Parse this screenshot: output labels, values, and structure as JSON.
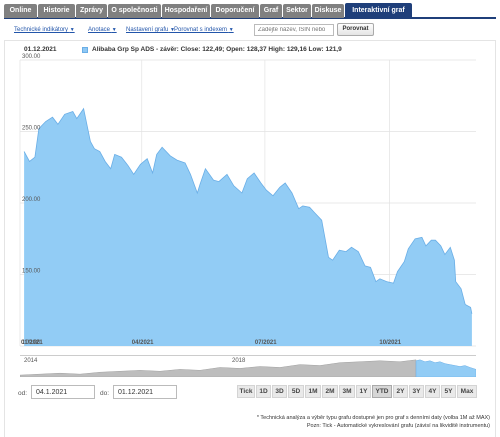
{
  "tabs": [
    {
      "label": "Online",
      "active": false
    },
    {
      "label": "Historie",
      "active": false
    },
    {
      "label": "Zprávy",
      "active": false
    },
    {
      "label": "O společnosti",
      "active": false
    },
    {
      "label": "Hospodaření",
      "active": false
    },
    {
      "label": "Doporučení",
      "active": false
    },
    {
      "label": "Graf",
      "active": false
    },
    {
      "label": "Sektor",
      "active": false
    },
    {
      "label": "Diskuse",
      "active": false
    },
    {
      "label": "Interaktivní graf",
      "active": true
    }
  ],
  "toolbar": {
    "items": [
      "Technické indikátory",
      "Anotace",
      "Nastavení grafu",
      "Porovnat s indexem"
    ],
    "search_placeholder": "Zadejte název, ISIN nebo",
    "compare_label": "Porovnat"
  },
  "chart_header": {
    "date": "01.12.2021",
    "legend": "Alibaba Grp Sp ADS - závěr: Close: 122,49; Open: 128,37 High: 129,16 Low: 121,9"
  },
  "colors": {
    "tab_active": "#1f3f7a",
    "tab_inactive": "#808080",
    "area_fill": "#92ccf5",
    "area_line": "#6aaee6",
    "navigator_fill": "#bdbdbd"
  },
  "chart_data": {
    "type": "area",
    "series": [
      {
        "name": "Alibaba Grp Sp ADS",
        "values": [
          [
            "2021-01-04",
            236
          ],
          [
            "2021-01-08",
            229
          ],
          [
            "2021-01-12",
            232
          ],
          [
            "2021-01-15",
            252
          ],
          [
            "2021-01-20",
            257
          ],
          [
            "2021-01-25",
            260
          ],
          [
            "2021-01-29",
            255
          ],
          [
            "2021-02-03",
            262
          ],
          [
            "2021-02-09",
            264
          ],
          [
            "2021-02-12",
            259
          ],
          [
            "2021-02-17",
            266
          ],
          [
            "2021-02-22",
            243
          ],
          [
            "2021-02-25",
            238
          ],
          [
            "2021-03-01",
            236
          ],
          [
            "2021-03-05",
            229
          ],
          [
            "2021-03-09",
            224
          ],
          [
            "2021-03-12",
            234
          ],
          [
            "2021-03-17",
            232
          ],
          [
            "2021-03-22",
            226
          ],
          [
            "2021-03-26",
            220
          ],
          [
            "2021-03-31",
            227
          ],
          [
            "2021-04-05",
            231
          ],
          [
            "2021-04-09",
            221
          ],
          [
            "2021-04-12",
            234
          ],
          [
            "2021-04-16",
            239
          ],
          [
            "2021-04-22",
            233
          ],
          [
            "2021-04-27",
            230
          ],
          [
            "2021-05-03",
            228
          ],
          [
            "2021-05-07",
            220
          ],
          [
            "2021-05-12",
            207
          ],
          [
            "2021-05-14",
            213
          ],
          [
            "2021-05-18",
            224
          ],
          [
            "2021-05-24",
            216
          ],
          [
            "2021-05-28",
            215
          ],
          [
            "2021-06-03",
            220
          ],
          [
            "2021-06-08",
            212
          ],
          [
            "2021-06-14",
            207
          ],
          [
            "2021-06-18",
            217
          ],
          [
            "2021-06-23",
            221
          ],
          [
            "2021-06-28",
            214
          ],
          [
            "2021-07-02",
            209
          ],
          [
            "2021-07-07",
            205
          ],
          [
            "2021-07-12",
            211
          ],
          [
            "2021-07-16",
            214
          ],
          [
            "2021-07-21",
            207
          ],
          [
            "2021-07-26",
            196
          ],
          [
            "2021-07-29",
            198
          ],
          [
            "2021-08-03",
            197
          ],
          [
            "2021-08-06",
            194
          ],
          [
            "2021-08-12",
            188
          ],
          [
            "2021-08-17",
            162
          ],
          [
            "2021-08-20",
            160
          ],
          [
            "2021-08-25",
            167
          ],
          [
            "2021-08-30",
            166
          ],
          [
            "2021-09-03",
            169
          ],
          [
            "2021-09-08",
            166
          ],
          [
            "2021-09-13",
            156
          ],
          [
            "2021-09-17",
            155
          ],
          [
            "2021-09-21",
            145
          ],
          [
            "2021-09-24",
            147
          ],
          [
            "2021-09-29",
            145
          ],
          [
            "2021-10-04",
            144
          ],
          [
            "2021-10-07",
            152
          ],
          [
            "2021-10-12",
            159
          ],
          [
            "2021-10-15",
            168
          ],
          [
            "2021-10-20",
            175
          ],
          [
            "2021-10-25",
            176
          ],
          [
            "2021-10-28",
            170
          ],
          [
            "2021-11-01",
            174
          ],
          [
            "2021-11-04",
            174
          ],
          [
            "2021-11-08",
            170
          ],
          [
            "2021-11-11",
            164
          ],
          [
            "2021-11-15",
            169
          ],
          [
            "2021-11-18",
            160
          ],
          [
            "2021-11-19",
            145
          ],
          [
            "2021-11-23",
            140
          ],
          [
            "2021-11-26",
            129
          ],
          [
            "2021-11-30",
            127
          ],
          [
            "2021-12-01",
            122.49
          ]
        ]
      }
    ],
    "y_ticks": [
      "300.00",
      "250.00",
      "200.00",
      "150.00",
      "100.00"
    ],
    "ylim": [
      100,
      300
    ],
    "x_ticks": [
      "01/2021",
      "04/2021",
      "07/2021",
      "10/2021"
    ],
    "xlim": [
      "2021-01-01",
      "2021-12-04"
    ],
    "grid": true,
    "legend": "top-left"
  },
  "navigator": {
    "year_labels": [
      "2014",
      "2018"
    ]
  },
  "date_range": {
    "from_label": "od:",
    "from_value": "04.1.2021",
    "to_label": "do:",
    "to_value": "01.12.2021"
  },
  "range_buttons": [
    {
      "label": "Tick",
      "selected": false
    },
    {
      "label": "1D",
      "selected": false
    },
    {
      "label": "3D",
      "selected": false
    },
    {
      "label": "5D",
      "selected": false
    },
    {
      "label": "1M",
      "selected": false
    },
    {
      "label": "2M",
      "selected": false
    },
    {
      "label": "3M",
      "selected": false
    },
    {
      "label": "1Y",
      "selected": false
    },
    {
      "label": "YTD",
      "selected": true
    },
    {
      "label": "2Y",
      "selected": false
    },
    {
      "label": "3Y",
      "selected": false
    },
    {
      "label": "4Y",
      "selected": false
    },
    {
      "label": "5Y",
      "selected": false
    },
    {
      "label": "Max",
      "selected": false
    }
  ],
  "footnotes": [
    "* Technická analýza a výběr typu grafu dostupné jen pro graf s denními daty (volba 1M až MAX)",
    "Pozn: Tick - Automatické vykreslování grafu (závisí na likviditě instrumentu)"
  ]
}
